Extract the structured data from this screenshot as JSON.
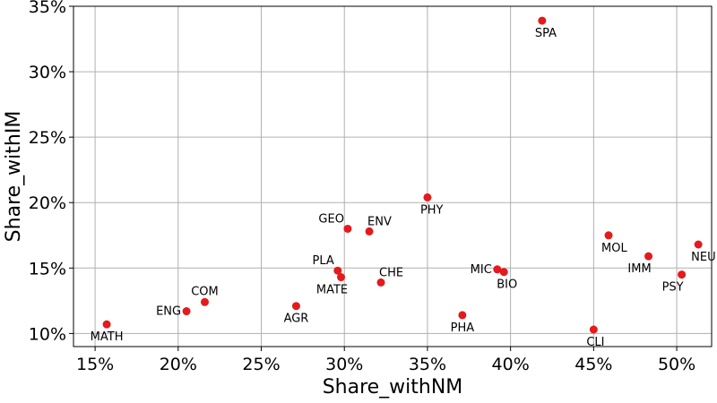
{
  "chart_data": {
    "type": "scatter",
    "title": "",
    "xlabel": "Share_withNM",
    "ylabel": "Share_withIM",
    "xlim": [
      0.137,
      0.521
    ],
    "ylim": [
      0.09,
      0.35
    ],
    "xticks": [
      0.15,
      0.2,
      0.25,
      0.3,
      0.35,
      0.4,
      0.45,
      0.5
    ],
    "yticks": [
      0.1,
      0.15,
      0.2,
      0.25,
      0.3,
      0.35
    ],
    "xtick_labels": [
      "15%",
      "20%",
      "25%",
      "30%",
      "35%",
      "40%",
      "45%",
      "50%"
    ],
    "ytick_labels": [
      "10%",
      "15%",
      "20%",
      "25%",
      "30%",
      "35%"
    ],
    "grid": true,
    "marker_color": "#e41a1c",
    "points": [
      {
        "label": "MATH",
        "x": 0.157,
        "y": 0.107,
        "label_pos": "below"
      },
      {
        "label": "ENG",
        "x": 0.205,
        "y": 0.117,
        "label_pos": "left"
      },
      {
        "label": "COM",
        "x": 0.216,
        "y": 0.124,
        "label_pos": "above"
      },
      {
        "label": "AGR",
        "x": 0.271,
        "y": 0.121,
        "label_pos": "below"
      },
      {
        "label": "PLA",
        "x": 0.296,
        "y": 0.148,
        "label_pos": "above-left"
      },
      {
        "label": "MATE",
        "x": 0.298,
        "y": 0.143,
        "label_pos": "below-left"
      },
      {
        "label": "GEO",
        "x": 0.302,
        "y": 0.18,
        "label_pos": "above-left"
      },
      {
        "label": "ENV",
        "x": 0.315,
        "y": 0.178,
        "label_pos": "above-right"
      },
      {
        "label": "CHE",
        "x": 0.322,
        "y": 0.139,
        "label_pos": "above-right"
      },
      {
        "label": "PHY",
        "x": 0.35,
        "y": 0.204,
        "label_pos": "below-right"
      },
      {
        "label": "PHA",
        "x": 0.371,
        "y": 0.114,
        "label_pos": "below"
      },
      {
        "label": "MIC",
        "x": 0.392,
        "y": 0.149,
        "label_pos": "left"
      },
      {
        "label": "BIO",
        "x": 0.396,
        "y": 0.147,
        "label_pos": "below-right"
      },
      {
        "label": "SPA",
        "x": 0.419,
        "y": 0.339,
        "label_pos": "below-right"
      },
      {
        "label": "CLI",
        "x": 0.45,
        "y": 0.103,
        "label_pos": "below-right"
      },
      {
        "label": "MOL",
        "x": 0.459,
        "y": 0.175,
        "label_pos": "below-right"
      },
      {
        "label": "IMM",
        "x": 0.483,
        "y": 0.159,
        "label_pos": "below-left"
      },
      {
        "label": "PSY",
        "x": 0.503,
        "y": 0.145,
        "label_pos": "below-left"
      },
      {
        "label": "NEU",
        "x": 0.513,
        "y": 0.168,
        "label_pos": "below-right"
      }
    ]
  }
}
